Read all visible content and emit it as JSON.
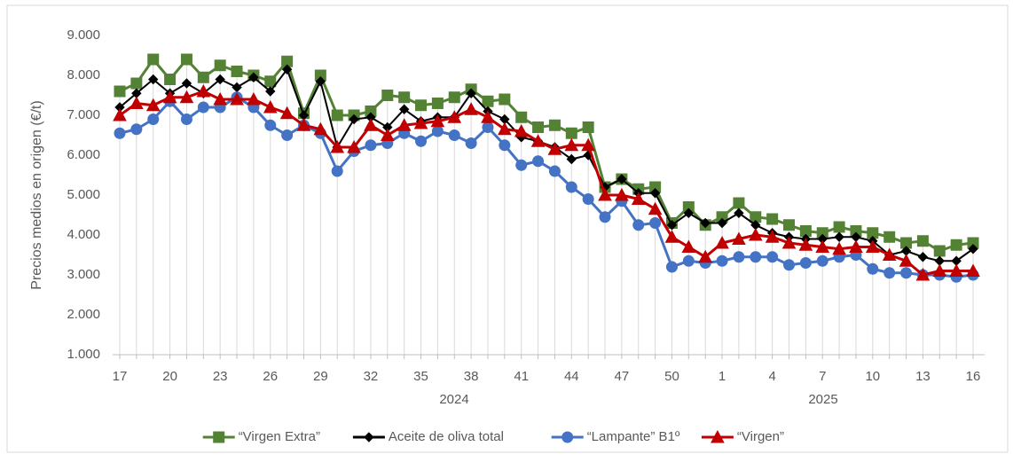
{
  "chart_data": {
    "type": "line",
    "y_label": "Precios medios  en origen (€/t)",
    "x_group_labels": [
      "2024",
      "2025"
    ],
    "categories": [
      "17",
      null,
      null,
      "20",
      null,
      null,
      "23",
      null,
      null,
      "26",
      null,
      null,
      "29",
      null,
      null,
      "32",
      null,
      null,
      "35",
      null,
      null,
      "38",
      null,
      null,
      "41",
      null,
      null,
      "44",
      null,
      null,
      "47",
      null,
      null,
      "50",
      null,
      null,
      "1",
      null,
      null,
      "4",
      null,
      null,
      "7",
      null,
      null,
      "10",
      null,
      null,
      "13",
      null,
      null,
      "16"
    ],
    "ylim": [
      1000,
      9000
    ],
    "yticks": [
      {
        "value": 1000,
        "label": "1.000"
      },
      {
        "value": 2000,
        "label": "2.000"
      },
      {
        "value": 3000,
        "label": "3.000"
      },
      {
        "value": 4000,
        "label": "4.000"
      },
      {
        "value": 5000,
        "label": "5.000"
      },
      {
        "value": 6000,
        "label": "6.000"
      },
      {
        "value": 7000,
        "label": "7.000"
      },
      {
        "value": 8000,
        "label": "8.000"
      },
      {
        "value": 9000,
        "label": "9.000"
      }
    ],
    "legend": "bottom",
    "series": [
      {
        "name": "“Virgen Extra”",
        "color": "#548235",
        "marker": "square",
        "values": [
          7600,
          7800,
          8400,
          7900,
          8400,
          7950,
          8250,
          8100,
          8000,
          7850,
          8350,
          7050,
          8000,
          7000,
          7000,
          7100,
          7500,
          7450,
          7250,
          7300,
          7450,
          7650,
          7350,
          7400,
          6950,
          6700,
          6750,
          6550,
          6700,
          5200,
          5400,
          5150,
          5200,
          4300,
          4700,
          4250,
          4450,
          4800,
          4450,
          4400,
          4250,
          4100,
          4050,
          4200,
          4100,
          4050,
          3950,
          3800,
          3850,
          3600,
          3750,
          3800
        ]
      },
      {
        "name": "Aceite de oliva total",
        "color": "#000000",
        "marker": "diamond",
        "values": [
          7200,
          7550,
          7900,
          7550,
          7800,
          7550,
          7900,
          7700,
          7950,
          7600,
          8150,
          7000,
          7850,
          6200,
          6900,
          6950,
          6700,
          7150,
          6850,
          6950,
          6950,
          7550,
          7100,
          6900,
          6450,
          6350,
          6200,
          5900,
          6000,
          5200,
          5400,
          5050,
          5050,
          4250,
          4550,
          4300,
          4300,
          4550,
          4250,
          4050,
          3950,
          3900,
          3900,
          3950,
          3950,
          3850,
          3500,
          3600,
          3450,
          3350,
          3350,
          3650
        ]
      },
      {
        "name": "“Lampante” B1º",
        "color": "#4472c4",
        "marker": "circle",
        "values": [
          6550,
          6650,
          6900,
          7350,
          6900,
          7200,
          7200,
          7450,
          7200,
          6750,
          6500,
          6750,
          6550,
          5600,
          6100,
          6250,
          6300,
          6550,
          6350,
          6600,
          6500,
          6300,
          6700,
          6250,
          5750,
          5850,
          5600,
          5200,
          4900,
          4450,
          4850,
          4250,
          4300,
          3200,
          3350,
          3300,
          3350,
          3450,
          3450,
          3450,
          3250,
          3300,
          3350,
          3450,
          3500,
          3150,
          3050,
          3050,
          3000,
          3000,
          2950,
          3000
        ]
      },
      {
        "name": "“Virgen”",
        "color": "#c00000",
        "marker": "triangle",
        "values": [
          7000,
          7300,
          7250,
          7450,
          7450,
          7600,
          7400,
          7400,
          7400,
          7200,
          7050,
          6750,
          6650,
          6200,
          6200,
          6750,
          6500,
          6750,
          6800,
          6850,
          6950,
          7150,
          6950,
          6650,
          6600,
          6350,
          6150,
          6250,
          6250,
          5000,
          5000,
          4900,
          4650,
          3950,
          3700,
          3450,
          3800,
          3900,
          4000,
          3950,
          3800,
          3750,
          3700,
          3650,
          3700,
          3700,
          3500,
          3350,
          3000,
          3100,
          3100,
          3100
        ]
      }
    ]
  }
}
